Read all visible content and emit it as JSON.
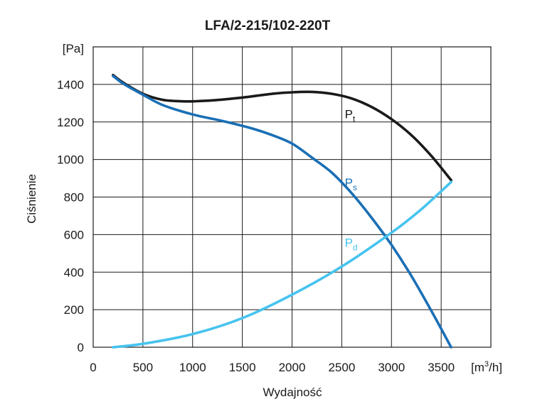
{
  "chart_data": {
    "type": "line",
    "title": "LFA/2-215/102-220T",
    "xlabel": "Wydajność",
    "ylabel": "Ciśnienie",
    "x_unit": "[m³/h]",
    "x_unit_base": "[m",
    "x_unit_sup": "3",
    "x_unit_tail": "/h]",
    "y_unit": "[Pa]",
    "xlim": [
      0,
      4000
    ],
    "ylim": [
      0,
      1600
    ],
    "x_ticks": [
      0,
      500,
      1000,
      1500,
      2000,
      2500,
      3000,
      3500
    ],
    "y_ticks": [
      0,
      200,
      400,
      600,
      800,
      1000,
      1200,
      1400
    ],
    "grid": true,
    "series": [
      {
        "name": "Pt",
        "label_main": "P",
        "label_sub": "t",
        "color": "#1a1a1a",
        "points": [
          [
            200,
            1450
          ],
          [
            300,
            1410
          ],
          [
            500,
            1350
          ],
          [
            700,
            1318
          ],
          [
            900,
            1310
          ],
          [
            1000,
            1310
          ],
          [
            1200,
            1315
          ],
          [
            1500,
            1330
          ],
          [
            1800,
            1350
          ],
          [
            2000,
            1358
          ],
          [
            2200,
            1360
          ],
          [
            2400,
            1350
          ],
          [
            2600,
            1325
          ],
          [
            2800,
            1280
          ],
          [
            3000,
            1215
          ],
          [
            3200,
            1130
          ],
          [
            3400,
            1020
          ],
          [
            3600,
            890
          ]
        ],
        "label_at": [
          2530,
          1220
        ]
      },
      {
        "name": "Ps",
        "label_main": "P",
        "label_sub": "s",
        "color": "#1a6fb5",
        "points": [
          [
            200,
            1445
          ],
          [
            300,
            1405
          ],
          [
            500,
            1345
          ],
          [
            700,
            1290
          ],
          [
            1000,
            1240
          ],
          [
            1300,
            1205
          ],
          [
            1600,
            1165
          ],
          [
            1800,
            1130
          ],
          [
            2000,
            1085
          ],
          [
            2200,
            1010
          ],
          [
            2400,
            930
          ],
          [
            2600,
            820
          ],
          [
            2800,
            690
          ],
          [
            3000,
            545
          ],
          [
            3200,
            380
          ],
          [
            3400,
            195
          ],
          [
            3600,
            0
          ]
        ],
        "label_at": [
          2530,
          855
        ]
      },
      {
        "name": "Pd",
        "label_main": "P",
        "label_sub": "d",
        "color": "#47c3ef",
        "points": [
          [
            200,
            0
          ],
          [
            500,
            18
          ],
          [
            1000,
            70
          ],
          [
            1500,
            155
          ],
          [
            2000,
            280
          ],
          [
            2500,
            430
          ],
          [
            3000,
            610
          ],
          [
            3300,
            735
          ],
          [
            3600,
            880
          ]
        ],
        "label_at": [
          2530,
          535
        ]
      }
    ]
  }
}
